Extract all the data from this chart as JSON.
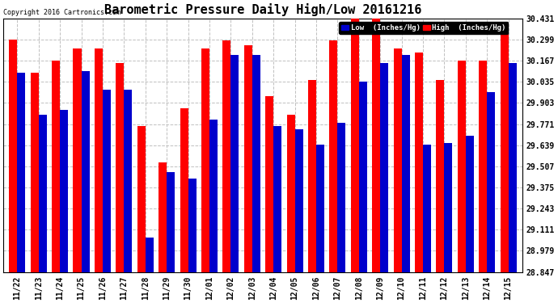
{
  "title": "Barometric Pressure Daily High/Low 20161216",
  "copyright": "Copyright 2016 Cartronics.com",
  "categories": [
    "11/22",
    "11/23",
    "11/24",
    "11/25",
    "11/26",
    "11/27",
    "11/28",
    "11/29",
    "11/30",
    "12/01",
    "12/02",
    "12/03",
    "12/04",
    "12/05",
    "12/06",
    "12/07",
    "12/08",
    "12/09",
    "12/10",
    "12/11",
    "12/12",
    "12/13",
    "12/14",
    "12/15"
  ],
  "high": [
    30.3,
    30.093,
    30.167,
    30.243,
    30.243,
    30.15,
    29.76,
    29.53,
    29.87,
    30.243,
    30.295,
    30.265,
    29.945,
    29.83,
    30.045,
    30.295,
    30.431,
    30.431,
    30.243,
    30.22,
    30.045,
    30.167,
    30.167,
    30.36
  ],
  "low": [
    30.093,
    29.83,
    29.86,
    30.1,
    29.985,
    29.985,
    29.06,
    29.47,
    29.43,
    29.8,
    30.2,
    30.2,
    29.76,
    29.74,
    29.64,
    29.78,
    30.035,
    30.15,
    30.2,
    29.64,
    29.65,
    29.7,
    29.97,
    30.15
  ],
  "ymin": 28.847,
  "ymax": 30.431,
  "yticks": [
    28.847,
    28.979,
    29.111,
    29.243,
    29.375,
    29.507,
    29.639,
    29.771,
    29.903,
    30.035,
    30.167,
    30.299,
    30.431
  ],
  "high_color": "#FF0000",
  "low_color": "#0000CC",
  "bg_color": "#FFFFFF",
  "grid_color": "#C0C0C0",
  "title_fontsize": 11,
  "tick_fontsize": 7,
  "bar_width": 0.38,
  "legend_low_label": "Low  (Inches/Hg)",
  "legend_high_label": "High  (Inches/Hg)"
}
